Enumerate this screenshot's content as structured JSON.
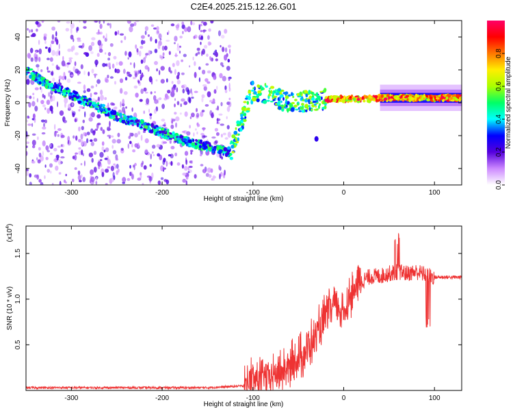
{
  "title": "C2E4.2025.215.12.26.G01",
  "chart_data": [
    {
      "type": "heatmap",
      "title": "C2E4.2025.215.12.26.G01",
      "xlabel": "Height of straight line (km)",
      "ylabel": "Frequency (Hz)",
      "xlim": [
        -350,
        130
      ],
      "ylim": [
        -50,
        50
      ],
      "xticks": [
        -300,
        -200,
        -100,
        0,
        100
      ],
      "yticks": [
        -40,
        -20,
        0,
        20,
        40
      ],
      "colorbar": {
        "label": "Normalized spectral amplitude",
        "range": [
          0,
          1
        ],
        "ticks": [
          "0.0",
          "0.2",
          "0.4",
          "0.6",
          "0.8"
        ],
        "colors": [
          "#ffffff",
          "#cc88ff",
          "#5500dd",
          "#0000ff",
          "#00ffff",
          "#00ff66",
          "#aaff00",
          "#ffee00",
          "#ff7700",
          "#ff0000",
          "#ff0066"
        ]
      },
      "signal_track": [
        {
          "x": -350,
          "y": 20
        },
        {
          "x": -330,
          "y": 12
        },
        {
          "x": -300,
          "y": 5
        },
        {
          "x": -250,
          "y": -8
        },
        {
          "x": -200,
          "y": -18
        },
        {
          "x": -170,
          "y": -24
        },
        {
          "x": -125,
          "y": -30
        },
        {
          "x": -100,
          "y": 8
        },
        {
          "x": -60,
          "y": 0
        },
        {
          "x": -20,
          "y": 2
        },
        {
          "x": 0,
          "y": 2
        },
        {
          "x": 50,
          "y": 3
        },
        {
          "x": 130,
          "y": 3
        }
      ],
      "grid": false
    },
    {
      "type": "line",
      "xlabel": "Height of straight line (km)",
      "ylabel": "SNR (10 * v/v)",
      "y_multiplier": "(x10",
      "y_multiplier_exp": "4",
      "y_multiplier_close": ")",
      "xlim": [
        -350,
        130
      ],
      "ylim": [
        0,
        1.8
      ],
      "xticks": [
        -300,
        -200,
        -100,
        0,
        100
      ],
      "yticks": [
        "0.5",
        "1.0",
        "1.5"
      ],
      "color": "#ee3333",
      "series": [
        {
          "x": [
            -350,
            -300,
            -250,
            -200,
            -150,
            -110,
            -100,
            -80,
            -60,
            -50,
            -40,
            -30,
            -20,
            -10,
            0,
            10,
            20,
            30,
            40,
            50,
            60,
            70,
            80,
            90,
            95,
            100,
            110,
            120,
            130
          ],
          "y": [
            0.03,
            0.03,
            0.03,
            0.03,
            0.03,
            0.05,
            0.12,
            0.15,
            0.25,
            0.35,
            0.45,
            0.6,
            0.8,
            0.95,
            0.85,
            1.1,
            1.2,
            1.25,
            1.25,
            1.28,
            1.3,
            1.28,
            1.3,
            1.27,
            1.25,
            1.24,
            1.24,
            1.24,
            1.24
          ]
        }
      ],
      "grid": false
    }
  ]
}
